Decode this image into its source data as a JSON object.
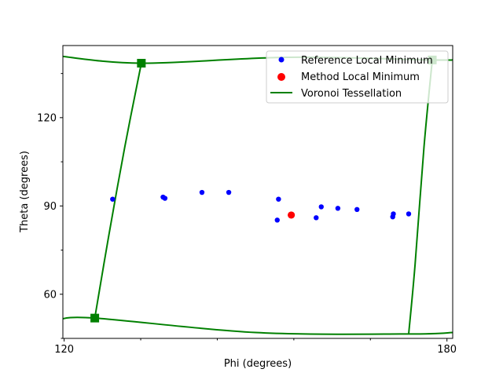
{
  "chart_data": {
    "type": "scatter",
    "xlabel": "Phi (degrees)",
    "ylabel": "Theta (degrees)",
    "xlim": [
      119.8,
      180.9
    ],
    "ylim": [
      144.5,
      45.0
    ],
    "y_inverted": true,
    "xticks": [
      120,
      180
    ],
    "xticks_minor": [
      132,
      144,
      156,
      168
    ],
    "yticks": [
      60,
      90,
      120
    ],
    "yticks_minor": [
      75,
      105,
      135,
      45
    ],
    "grid": false,
    "legend_position": "upper right",
    "legend": [
      {
        "label": "Reference Local Minimum",
        "marker": "dot",
        "color": "#0000ff"
      },
      {
        "label": "Method Local Minimum",
        "marker": "dot-large",
        "color": "#ff0000"
      },
      {
        "label": "Voronoi Tessellation",
        "marker": "line",
        "color": "#008000"
      }
    ],
    "series": [
      {
        "name": "Reference Local Minimum",
        "color": "#0000ff",
        "points": [
          [
            127.6,
            92.3
          ],
          [
            135.5,
            93.0
          ],
          [
            135.8,
            92.6
          ],
          [
            141.6,
            94.6
          ],
          [
            145.8,
            94.6
          ],
          [
            153.4,
            85.2
          ],
          [
            153.6,
            92.3
          ],
          [
            159.5,
            86.0
          ],
          [
            160.3,
            89.7
          ],
          [
            162.9,
            89.2
          ],
          [
            165.9,
            88.8
          ],
          [
            171.5,
            86.3
          ],
          [
            171.6,
            87.3
          ],
          [
            174.0,
            87.3
          ]
        ]
      },
      {
        "name": "Method Local Minimum",
        "color": "#ff0000",
        "points": [
          [
            155.6,
            86.9
          ]
        ]
      },
      {
        "name": "Voronoi Tessellation",
        "color": "#008000",
        "vertices": [
          [
            124.8,
            51.9
          ],
          [
            132.1,
            138.5
          ],
          [
            177.7,
            139.6
          ]
        ],
        "edges": [
          [
            [
              119.0,
              51.3
            ],
            [
              124.8,
              51.9
            ],
            [
              150.0,
              47.0
            ],
            [
              174.0,
              46.5
            ],
            [
              181.0,
              47.0
            ]
          ],
          [
            [
              124.8,
              51.9
            ],
            [
              127.0,
              80.0
            ],
            [
              129.5,
              110.0
            ],
            [
              132.1,
              138.5
            ]
          ],
          [
            [
              119.0,
              141.0
            ],
            [
              132.1,
              138.5
            ],
            [
              155.0,
              140.5
            ],
            [
              177.7,
              139.6
            ],
            [
              181.0,
              139.7
            ]
          ],
          [
            [
              174.0,
              46.5
            ],
            [
              175.0,
              70.0
            ],
            [
              176.4,
              110.0
            ],
            [
              177.7,
              139.6
            ]
          ]
        ]
      }
    ]
  }
}
